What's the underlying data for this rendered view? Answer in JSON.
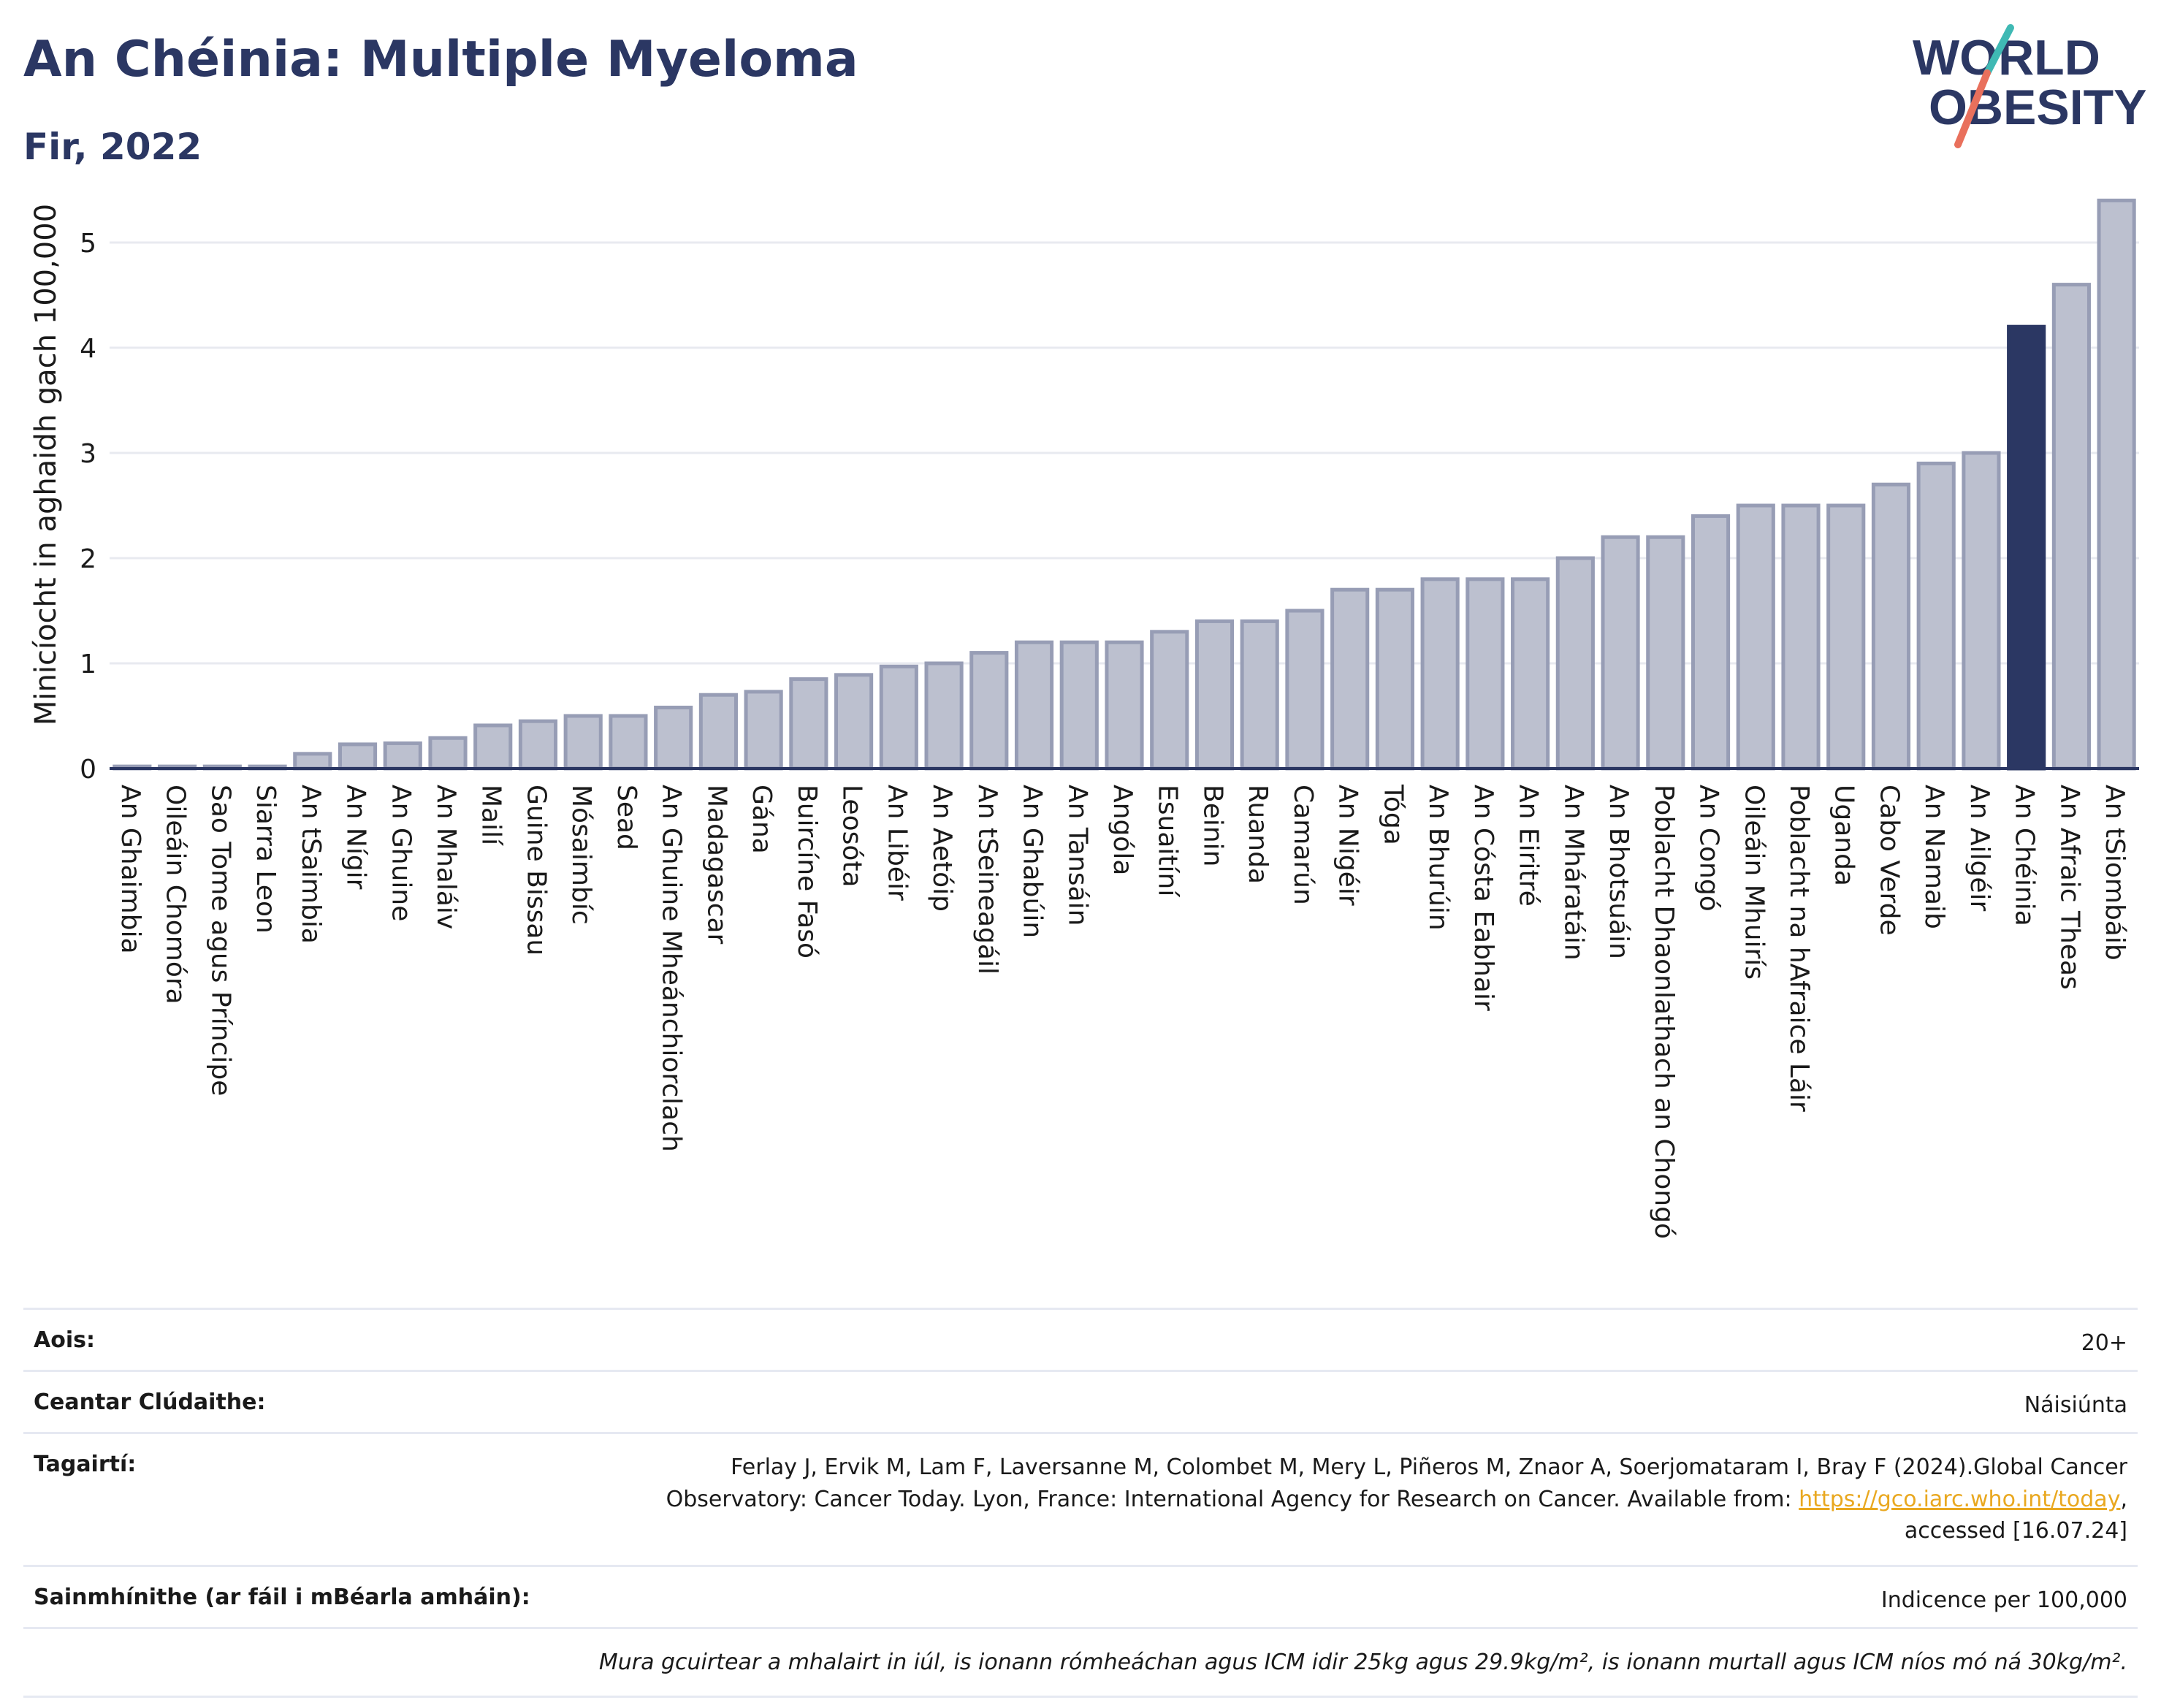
{
  "header": {
    "title": "An Chéinia: Multiple Myeloma",
    "subtitle": "Fir, 2022"
  },
  "logo": {
    "line1": "WORLD",
    "line2": "OBESITY"
  },
  "colors": {
    "bar": "#bcc0cf",
    "bar_border": "#979db5",
    "highlight": "#2b3763",
    "axis": "#2b3763",
    "grid": "#e8eaf0"
  },
  "chart_data": {
    "type": "bar",
    "ylabel": "Minicíocht in aghaidh gach 100,000",
    "xlabel": "",
    "ylim": [
      0,
      5.5
    ],
    "yticks": [
      0,
      1,
      2,
      3,
      4,
      5
    ],
    "grid": true,
    "highlight": "An Chéinia",
    "categories": [
      "An Ghaimbia",
      "Oileáin Chomóra",
      "Sao Tome agus Príncipe",
      "Siarra Leon",
      "An tSaimbia",
      "An Nígir",
      "An Ghuine",
      "An Mhaláiv",
      "Mailí",
      "Guine Bissau",
      "Mósaimbíc",
      "Sead",
      "An Ghuine Mheánchiorclach",
      "Madagascar",
      "Gána",
      "Buircíne Fasó",
      "Leosóta",
      "An Libéir",
      "An Aetóip",
      "An tSeineagáil",
      "An Ghabúin",
      "An Tansáin",
      "Angóla",
      "Esuaitíní",
      "Beinin",
      "Ruanda",
      "Camarún",
      "An Nigéir",
      "Tóga",
      "An Bhurúin",
      "An Cósta Eabhair",
      "An Eiritré",
      "An Mháratáin",
      "An Bhotsuáin",
      "Poblacht Dhaonlathach an Chongó",
      "An Congó",
      "Oileáin Mhuirís",
      "Poblacht na hAfraice Láir",
      "Uganda",
      "Cabo Verde",
      "An Namaib",
      "An Ailgéir",
      "An Chéinia",
      "An Afraic Theas",
      "An tSiombáib"
    ],
    "values": [
      0.02,
      0.02,
      0.02,
      0.02,
      0.14,
      0.23,
      0.24,
      0.29,
      0.41,
      0.45,
      0.5,
      0.5,
      0.58,
      0.7,
      0.73,
      0.85,
      0.89,
      0.97,
      1.0,
      1.1,
      1.2,
      1.2,
      1.2,
      1.3,
      1.4,
      1.4,
      1.5,
      1.7,
      1.7,
      1.8,
      1.8,
      1.8,
      2.0,
      2.2,
      2.2,
      2.4,
      2.5,
      2.5,
      2.5,
      2.7,
      2.9,
      3.0,
      4.2,
      4.6,
      5.4
    ]
  },
  "meta": {
    "age_label": "Aois:",
    "age_value": "20+",
    "area_label": "Ceantar Clúdaithe:",
    "area_value": "Náisiúnta",
    "ref_label": "Tagairtí:",
    "ref_text_1": "Ferlay J, Ervik M, Lam F, Laversanne M, Colombet M, Mery L, Piñeros M, Znaor A, Soerjomataram I, Bray F (2024).Global Cancer",
    "ref_text_2": "Observatory: Cancer Today. Lyon, France: International Agency for Research on Cancer. Available from: ",
    "ref_link": "https://gco.iarc.who.int/today",
    "ref_text_3": ",",
    "ref_text_4": "accessed [16.07.24]",
    "def_label": "Sainmhínithe (ar fáil i mBéarla amháin):",
    "def_value": "Indicence per 100,000",
    "note": "Mura gcuirtear a mhalairt in iúl, is ionann rómheáchan agus ICM idir 25kg agus 29.9kg/m², is ionann murtall agus ICM níos mó ná 30kg/m²."
  }
}
